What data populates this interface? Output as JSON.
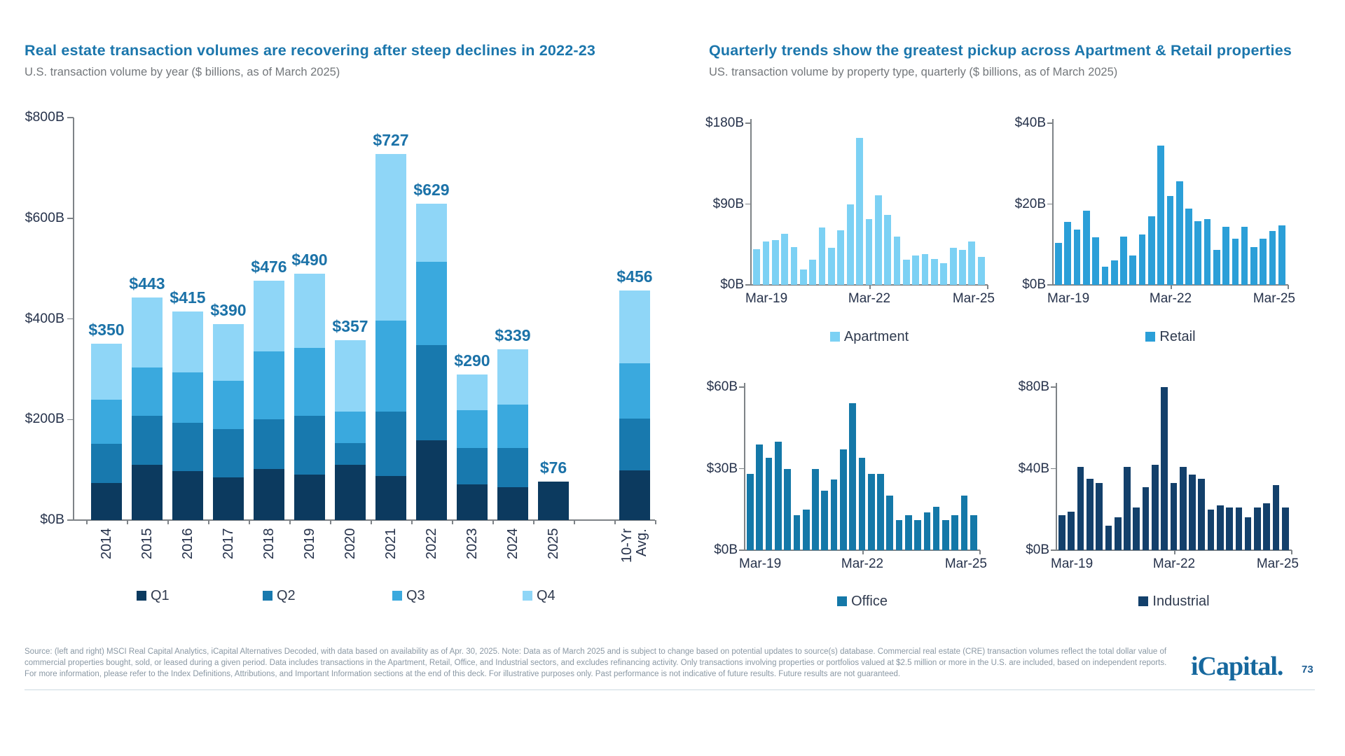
{
  "left_panel": {
    "title": "Real estate transaction volumes are recovering after steep declines in 2022-23",
    "subtitle": "U.S. transaction volume by year ($ billions, as of March 2025)"
  },
  "right_panel": {
    "title": "Quarterly trends show the greatest pickup across Apartment & Retail properties",
    "subtitle": "US. transaction volume by property type, quarterly ($ billions, as of March 2025)"
  },
  "colors": {
    "title_blue": "#1B76AC",
    "label_blue": "#1B72A8",
    "axis_gray": "#7E8387",
    "tick_text": "#26324B",
    "q1": "#0C3A5F",
    "q2": "#1879AE",
    "q3": "#3AA9DE",
    "q4": "#8FD6F7",
    "apartment": "#7CD1F4",
    "retail": "#2B9FD8",
    "office": "#1478A8",
    "industrial": "#13406B"
  },
  "chart_data": [
    {
      "id": "annual",
      "type": "bar",
      "stacked": true,
      "title": "U.S. transaction volume by year ($ billions)",
      "categories": [
        "2014",
        "2015",
        "2016",
        "2017",
        "2018",
        "2019",
        "2020",
        "2021",
        "2022",
        "2023",
        "2024",
        "2025",
        "",
        "10-Yr\nAvg."
      ],
      "series": [
        {
          "name": "Q1",
          "color": "#0C3A5F",
          "values": [
            74,
            110,
            97,
            85,
            102,
            91,
            110,
            87,
            158,
            71,
            66,
            76,
            0,
            99
          ]
        },
        {
          "name": "Q2",
          "color": "#1879AE",
          "values": [
            77,
            98,
            96,
            96,
            98,
            117,
            43,
            128,
            190,
            73,
            78,
            0,
            0,
            103
          ]
        },
        {
          "name": "Q3",
          "color": "#3AA9DE",
          "values": [
            89,
            96,
            101,
            96,
            136,
            134,
            62,
            182,
            165,
            75,
            85,
            0,
            0,
            110
          ]
        },
        {
          "name": "Q4",
          "color": "#8FD6F7",
          "values": [
            110,
            139,
            121,
            113,
            140,
            148,
            142,
            330,
            116,
            71,
            110,
            0,
            0,
            144
          ]
        }
      ],
      "totals": [
        350,
        443,
        415,
        390,
        476,
        490,
        357,
        727,
        629,
        290,
        339,
        76,
        null,
        456
      ],
      "total_labels": [
        "$350",
        "$443",
        "$415",
        "$390",
        "$476",
        "$490",
        "$357",
        "$727",
        "$629",
        "$290",
        "$339",
        "$76",
        "",
        "$456"
      ],
      "ylim": [
        0,
        800
      ],
      "y_tick_labels": [
        "$0B",
        "$200B",
        "$400B",
        "$600B",
        "$800B"
      ],
      "grid": false,
      "legend_position": "bottom"
    },
    {
      "id": "apartment",
      "type": "bar",
      "name": "Apartment",
      "color": "#7CD1F4",
      "x_tick_labels": [
        "Mar-19",
        "Mar-22",
        "Mar-25"
      ],
      "x_note": "quarterly from Mar-19 to Mar-25",
      "values": [
        40,
        48,
        50,
        57,
        42,
        17,
        28,
        64,
        41,
        61,
        90,
        164,
        73,
        100,
        78,
        54,
        28,
        33,
        34,
        29,
        24,
        41,
        39,
        48,
        31
      ],
      "ylim": [
        0,
        180
      ],
      "y_tick_labels": [
        "$0B",
        "$90B",
        "$180B"
      ],
      "grid": false,
      "legend_position": "bottom"
    },
    {
      "id": "retail",
      "type": "bar",
      "name": "Retail",
      "color": "#2B9FD8",
      "x_tick_labels": [
        "Mar-19",
        "Mar-22",
        "Mar-25"
      ],
      "x_note": "quarterly from Mar-19 to Mar-25",
      "values": [
        10.4,
        15.6,
        13.7,
        18.4,
        11.7,
        4.5,
        6.1,
        12,
        7.3,
        12.4,
        16.9,
        34.4,
        22,
        25.6,
        18.9,
        15.7,
        16.3,
        8.7,
        14.4,
        11.4,
        14.4,
        9.4,
        11.5,
        13.3,
        14.7
      ],
      "ylim": [
        0,
        40
      ],
      "y_tick_labels": [
        "$0B",
        "$20B",
        "$40B"
      ],
      "grid": false,
      "legend_position": "bottom"
    },
    {
      "id": "office",
      "type": "bar",
      "name": "Office",
      "color": "#1478A8",
      "x_tick_labels": [
        "Mar-19",
        "Mar-22",
        "Mar-25"
      ],
      "x_note": "quarterly from Mar-19 to Mar-25",
      "values": [
        28,
        39,
        34,
        40,
        30,
        13,
        15,
        30,
        22,
        26,
        37,
        54,
        34,
        28,
        28,
        20,
        11,
        13,
        11,
        14,
        16,
        11,
        13,
        20,
        13
      ],
      "ylim": [
        0,
        60
      ],
      "y_tick_labels": [
        "$0B",
        "$30B",
        "$60B"
      ],
      "grid": false,
      "legend_position": "bottom"
    },
    {
      "id": "industrial",
      "type": "bar",
      "name": "Industrial",
      "color": "#13406B",
      "x_tick_labels": [
        "Mar-19",
        "Mar-22",
        "Mar-25"
      ],
      "x_note": "quarterly from Mar-19 to Mar-25",
      "values": [
        17,
        19,
        41,
        35,
        33,
        12,
        16,
        41,
        21,
        31,
        42,
        80,
        33,
        41,
        37,
        35,
        20,
        22,
        21,
        21,
        16,
        21,
        23,
        32,
        21
      ],
      "ylim": [
        0,
        80
      ],
      "y_tick_labels": [
        "$0B",
        "$40B",
        "$80B"
      ],
      "grid": false,
      "legend_position": "bottom"
    }
  ],
  "footer": {
    "source_text": "Source: (left and right) MSCI Real Capital Analytics, iCapital Alternatives Decoded, with data based on availability as of Apr. 30, 2025. Note: Data as of March 2025 and is subject to change based on potential updates to source(s) database. Commercial real estate (CRE) transaction volumes reflect the total dollar value of commercial properties bought, sold, or leased during a given period. Data includes transactions in the Apartment, Retail, Office, and Industrial sectors, and excludes refinancing activity. Only transactions involving properties or portfolios valued at $2.5 million or more in the U.S. are included, based on independent reports. For more information, please refer to the Index Definitions, Attributions, and Important Information sections at the end of this deck. For illustrative purposes only. Past performance is not indicative of future results. Future results are not guaranteed.",
    "logo_text": "iCapital",
    "logo_dot": ".",
    "page_number": "73"
  }
}
